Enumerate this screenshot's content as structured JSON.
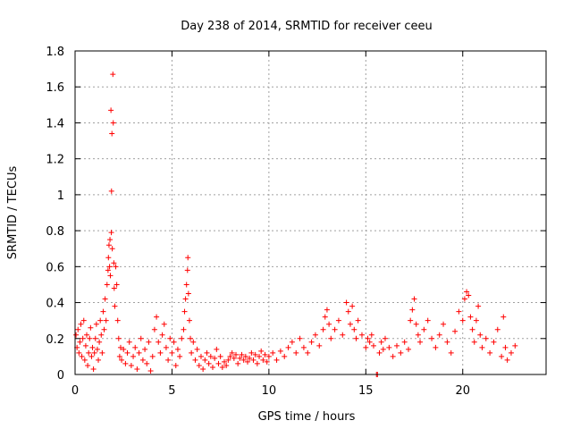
{
  "chart_data": {
    "type": "scatter",
    "title": "Day 238 of 2014, SRMTID for receiver ceeu",
    "xlabel": "GPS time / hours",
    "ylabel": "SRMTID / TECUs",
    "xlim": [
      0,
      24.3
    ],
    "ylim": [
      0,
      1.8
    ],
    "xticks": [
      0,
      5,
      10,
      15,
      20
    ],
    "yticks": [
      0,
      0.2,
      0.4,
      0.6,
      0.8,
      1,
      1.2,
      1.4,
      1.6,
      1.8
    ],
    "xtick_labels": [
      "0",
      "5",
      "10",
      "15",
      "20"
    ],
    "ytick_labels": [
      "0",
      "0.2",
      "0.4",
      "0.6",
      "0.8",
      "1",
      "1.2",
      "1.4",
      "1.6",
      "1.8"
    ],
    "grid": true,
    "marker": "+",
    "color": "#ff0000",
    "series": [
      {
        "name": "SRMTID",
        "points": [
          [
            0.05,
            0.22
          ],
          [
            0.1,
            0.15
          ],
          [
            0.15,
            0.25
          ],
          [
            0.2,
            0.12
          ],
          [
            0.25,
            0.18
          ],
          [
            0.3,
            0.28
          ],
          [
            0.35,
            0.1
          ],
          [
            0.4,
            0.2
          ],
          [
            0.45,
            0.3
          ],
          [
            0.5,
            0.08
          ],
          [
            0.55,
            0.16
          ],
          [
            0.6,
            0.22
          ],
          [
            0.65,
            0.05
          ],
          [
            0.7,
            0.12
          ],
          [
            0.75,
            0.2
          ],
          [
            0.8,
            0.26
          ],
          [
            0.85,
            0.1
          ],
          [
            0.9,
            0.15
          ],
          [
            0.95,
            0.03
          ],
          [
            1.0,
            0.12
          ],
          [
            1.05,
            0.2
          ],
          [
            1.1,
            0.28
          ],
          [
            1.15,
            0.14
          ],
          [
            1.2,
            0.08
          ],
          [
            1.25,
            0.18
          ],
          [
            1.3,
            0.3
          ],
          [
            1.35,
            0.22
          ],
          [
            1.4,
            0.12
          ],
          [
            1.45,
            0.35
          ],
          [
            1.5,
            0.25
          ],
          [
            1.55,
            0.42
          ],
          [
            1.6,
            0.3
          ],
          [
            1.65,
            0.5
          ],
          [
            1.7,
            0.58
          ],
          [
            1.72,
            0.65
          ],
          [
            1.75,
            0.72
          ],
          [
            1.78,
            0.6
          ],
          [
            1.8,
            0.75
          ],
          [
            1.82,
            0.55
          ],
          [
            1.85,
            1.47
          ],
          [
            1.87,
            0.79
          ],
          [
            1.88,
            1.02
          ],
          [
            1.9,
            1.34
          ],
          [
            1.92,
            0.7
          ],
          [
            1.95,
            1.67
          ],
          [
            1.97,
            1.4
          ],
          [
            2.0,
            0.62
          ],
          [
            2.02,
            0.48
          ],
          [
            2.05,
            0.38
          ],
          [
            2.1,
            0.6
          ],
          [
            2.15,
            0.5
          ],
          [
            2.2,
            0.3
          ],
          [
            2.25,
            0.2
          ],
          [
            2.3,
            0.1
          ],
          [
            2.35,
            0.15
          ],
          [
            2.4,
            0.08
          ],
          [
            2.5,
            0.14
          ],
          [
            2.6,
            0.06
          ],
          [
            2.7,
            0.12
          ],
          [
            2.8,
            0.18
          ],
          [
            2.9,
            0.05
          ],
          [
            3.0,
            0.1
          ],
          [
            3.1,
            0.15
          ],
          [
            3.2,
            0.03
          ],
          [
            3.3,
            0.12
          ],
          [
            3.4,
            0.2
          ],
          [
            3.5,
            0.08
          ],
          [
            3.6,
            0.14
          ],
          [
            3.7,
            0.06
          ],
          [
            3.8,
            0.18
          ],
          [
            3.9,
            0.02
          ],
          [
            4.0,
            0.1
          ],
          [
            4.1,
            0.25
          ],
          [
            4.2,
            0.32
          ],
          [
            4.3,
            0.18
          ],
          [
            4.4,
            0.12
          ],
          [
            4.5,
            0.22
          ],
          [
            4.6,
            0.28
          ],
          [
            4.7,
            0.15
          ],
          [
            4.8,
            0.08
          ],
          [
            4.9,
            0.2
          ],
          [
            5.0,
            0.12
          ],
          [
            5.1,
            0.18
          ],
          [
            5.2,
            0.05
          ],
          [
            5.3,
            0.14
          ],
          [
            5.4,
            0.1
          ],
          [
            5.5,
            0.2
          ],
          [
            5.6,
            0.25
          ],
          [
            5.65,
            0.35
          ],
          [
            5.7,
            0.42
          ],
          [
            5.75,
            0.5
          ],
          [
            5.8,
            0.58
          ],
          [
            5.82,
            0.65
          ],
          [
            5.85,
            0.45
          ],
          [
            5.9,
            0.3
          ],
          [
            5.95,
            0.2
          ],
          [
            6.0,
            0.12
          ],
          [
            6.1,
            0.18
          ],
          [
            6.2,
            0.08
          ],
          [
            6.3,
            0.14
          ],
          [
            6.4,
            0.05
          ],
          [
            6.5,
            0.1
          ],
          [
            6.6,
            0.03
          ],
          [
            6.7,
            0.08
          ],
          [
            6.8,
            0.12
          ],
          [
            6.9,
            0.06
          ],
          [
            7.0,
            0.1
          ],
          [
            7.1,
            0.04
          ],
          [
            7.2,
            0.09
          ],
          [
            7.3,
            0.14
          ],
          [
            7.4,
            0.06
          ],
          [
            7.5,
            0.1
          ],
          [
            7.6,
            0.04
          ],
          [
            7.7,
            0.07
          ],
          [
            7.8,
            0.05
          ],
          [
            7.9,
            0.08
          ],
          [
            8.0,
            0.1
          ],
          [
            8.1,
            0.12
          ],
          [
            8.2,
            0.09
          ],
          [
            8.3,
            0.11
          ],
          [
            8.4,
            0.06
          ],
          [
            8.5,
            0.09
          ],
          [
            8.6,
            0.11
          ],
          [
            8.7,
            0.08
          ],
          [
            8.8,
            0.1
          ],
          [
            8.9,
            0.07
          ],
          [
            9.0,
            0.09
          ],
          [
            9.1,
            0.12
          ],
          [
            9.2,
            0.08
          ],
          [
            9.3,
            0.11
          ],
          [
            9.4,
            0.06
          ],
          [
            9.5,
            0.1
          ],
          [
            9.6,
            0.13
          ],
          [
            9.7,
            0.08
          ],
          [
            9.8,
            0.11
          ],
          [
            9.9,
            0.07
          ],
          [
            10.0,
            0.1
          ],
          [
            10.2,
            0.12
          ],
          [
            10.4,
            0.08
          ],
          [
            10.6,
            0.13
          ],
          [
            10.8,
            0.1
          ],
          [
            11.0,
            0.15
          ],
          [
            11.2,
            0.18
          ],
          [
            11.4,
            0.12
          ],
          [
            11.6,
            0.2
          ],
          [
            11.8,
            0.15
          ],
          [
            12.0,
            0.12
          ],
          [
            12.2,
            0.18
          ],
          [
            12.4,
            0.22
          ],
          [
            12.6,
            0.16
          ],
          [
            12.8,
            0.25
          ],
          [
            12.9,
            0.32
          ],
          [
            13.0,
            0.36
          ],
          [
            13.1,
            0.28
          ],
          [
            13.2,
            0.2
          ],
          [
            13.4,
            0.25
          ],
          [
            13.6,
            0.3
          ],
          [
            13.8,
            0.22
          ],
          [
            14.0,
            0.4
          ],
          [
            14.1,
            0.35
          ],
          [
            14.2,
            0.28
          ],
          [
            14.3,
            0.38
          ],
          [
            14.4,
            0.25
          ],
          [
            14.5,
            0.2
          ],
          [
            14.6,
            0.3
          ],
          [
            14.8,
            0.22
          ],
          [
            15.0,
            0.15
          ],
          [
            15.1,
            0.2
          ],
          [
            15.2,
            0.18
          ],
          [
            15.3,
            0.22
          ],
          [
            15.4,
            0.16
          ],
          [
            15.55,
            0.0
          ],
          [
            15.6,
            0.0
          ],
          [
            15.7,
            0.12
          ],
          [
            15.8,
            0.18
          ],
          [
            15.9,
            0.14
          ],
          [
            16.0,
            0.2
          ],
          [
            16.2,
            0.15
          ],
          [
            16.4,
            0.1
          ],
          [
            16.6,
            0.16
          ],
          [
            16.8,
            0.12
          ],
          [
            17.0,
            0.18
          ],
          [
            17.2,
            0.14
          ],
          [
            17.3,
            0.3
          ],
          [
            17.4,
            0.36
          ],
          [
            17.5,
            0.42
          ],
          [
            17.6,
            0.28
          ],
          [
            17.7,
            0.22
          ],
          [
            17.8,
            0.18
          ],
          [
            18.0,
            0.25
          ],
          [
            18.2,
            0.3
          ],
          [
            18.4,
            0.2
          ],
          [
            18.6,
            0.15
          ],
          [
            18.8,
            0.22
          ],
          [
            19.0,
            0.28
          ],
          [
            19.2,
            0.18
          ],
          [
            19.4,
            0.12
          ],
          [
            19.6,
            0.24
          ],
          [
            19.8,
            0.35
          ],
          [
            20.0,
            0.3
          ],
          [
            20.1,
            0.42
          ],
          [
            20.2,
            0.46
          ],
          [
            20.3,
            0.44
          ],
          [
            20.4,
            0.32
          ],
          [
            20.5,
            0.25
          ],
          [
            20.6,
            0.18
          ],
          [
            20.7,
            0.3
          ],
          [
            20.8,
            0.38
          ],
          [
            20.9,
            0.22
          ],
          [
            21.0,
            0.15
          ],
          [
            21.2,
            0.2
          ],
          [
            21.4,
            0.12
          ],
          [
            21.6,
            0.18
          ],
          [
            21.8,
            0.25
          ],
          [
            22.0,
            0.1
          ],
          [
            22.1,
            0.32
          ],
          [
            22.2,
            0.15
          ],
          [
            22.3,
            0.08
          ],
          [
            22.5,
            0.12
          ],
          [
            22.7,
            0.16
          ]
        ]
      }
    ]
  }
}
